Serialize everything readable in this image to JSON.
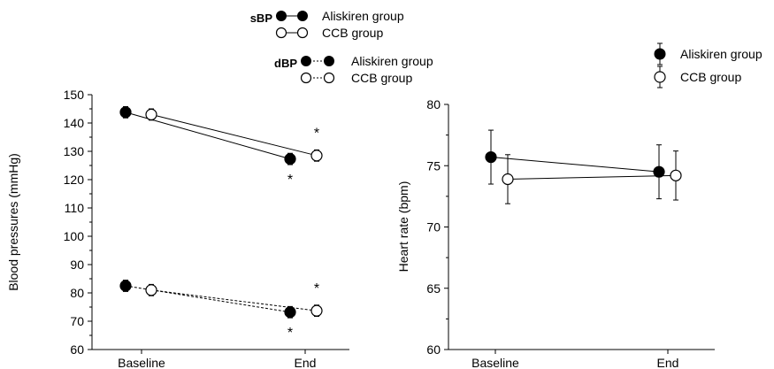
{
  "chart_data": [
    {
      "type": "line",
      "ylabel": "Blood pressures (mmHg)",
      "xlabel": "",
      "categories": [
        "Baseline",
        "End"
      ],
      "ylim": [
        60,
        150
      ],
      "yticks": [
        60,
        70,
        80,
        90,
        100,
        110,
        120,
        130,
        140,
        150
      ],
      "grid": false,
      "legend": {
        "placement": "top-center",
        "groups": [
          {
            "key": "sBP",
            "line_style": "solid",
            "entries": [
              "Aliskiren group",
              "CCB group"
            ]
          },
          {
            "key": "dBP",
            "line_style": "dashed",
            "entries": [
              "Aliskiren group",
              "CCB group"
            ]
          }
        ]
      },
      "series": [
        {
          "name": "Aliskiren group",
          "group": "sBP",
          "marker": "filled",
          "line_style": "solid",
          "values": [
            143.8,
            127.3
          ],
          "errors": [
            2.0,
            2.0
          ]
        },
        {
          "name": "CCB group",
          "group": "sBP",
          "marker": "open",
          "line_style": "solid",
          "values": [
            143.0,
            128.5
          ],
          "errors": [
            2.0,
            2.0
          ]
        },
        {
          "name": "Aliskiren group",
          "group": "dBP",
          "marker": "filled",
          "line_style": "dashed",
          "values": [
            82.5,
            73.2
          ],
          "errors": [
            2.0,
            2.0
          ]
        },
        {
          "name": "CCB group",
          "group": "dBP",
          "marker": "open",
          "line_style": "dashed",
          "values": [
            81.0,
            73.7
          ],
          "errors": [
            2.0,
            2.0
          ]
        }
      ],
      "annotations": [
        {
          "text": "*",
          "series": 0,
          "category": 1,
          "side": "below"
        },
        {
          "text": "*",
          "series": 1,
          "category": 1,
          "side": "above"
        },
        {
          "text": "*",
          "series": 2,
          "category": 1,
          "side": "below"
        },
        {
          "text": "*",
          "series": 3,
          "category": 1,
          "side": "above"
        }
      ]
    },
    {
      "type": "line",
      "ylabel": "Heart rate (bpm)",
      "xlabel": "",
      "categories": [
        "Baseline",
        "End"
      ],
      "ylim": [
        60,
        80
      ],
      "yticks": [
        60,
        65,
        70,
        75,
        80
      ],
      "grid": false,
      "legend": {
        "placement": "top-right",
        "entries": [
          "Aliskiren group",
          "CCB group"
        ]
      },
      "series": [
        {
          "name": "Aliskiren group",
          "marker": "filled",
          "line_style": "solid",
          "values": [
            75.7,
            74.5
          ],
          "errors": [
            2.2,
            2.2
          ]
        },
        {
          "name": "CCB group",
          "marker": "open",
          "line_style": "solid",
          "values": [
            73.9,
            74.2
          ],
          "errors": [
            2.0,
            2.0
          ]
        }
      ]
    }
  ]
}
